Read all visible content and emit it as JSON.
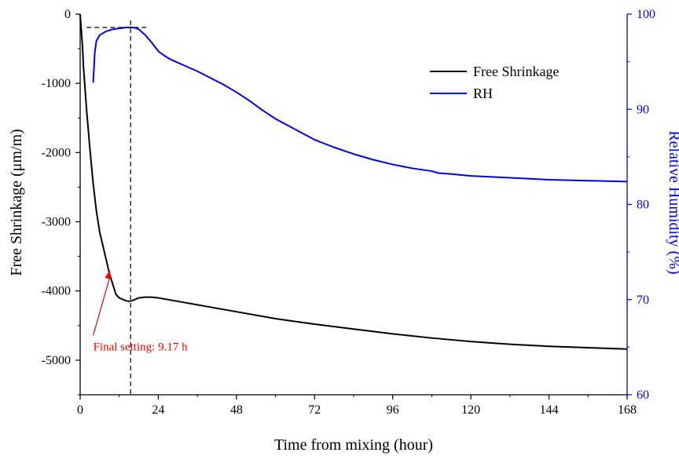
{
  "chart_data": {
    "type": "line",
    "xlabel": "Time from mixing (hour)",
    "ylabel_left": "Free Shrinkage (μm/m)",
    "ylabel_right": "Relative Humidity (%)",
    "xlim": [
      0,
      168
    ],
    "ylim_left": [
      -5500,
      0
    ],
    "ylim_right": [
      60,
      100
    ],
    "x_ticks": [
      0,
      24,
      48,
      72,
      96,
      120,
      144,
      168
    ],
    "y_left_ticks": [
      0,
      -1000,
      -2000,
      -3000,
      -4000,
      -5000
    ],
    "y_right_ticks": [
      100,
      90,
      80,
      70,
      60
    ],
    "legend_position": "top-right",
    "colors": {
      "shrinkage": "#000000",
      "rh": "#0000ee",
      "annotation": "#ee0000",
      "guide": "#000000"
    },
    "series": [
      {
        "name": "Free Shrinkage",
        "axis": "left",
        "x": [
          0,
          0.3,
          0.7,
          1,
          2,
          3,
          4,
          5,
          6,
          7,
          8,
          9,
          10,
          11,
          12,
          13,
          14,
          15,
          16,
          17,
          18,
          20,
          22,
          24,
          30,
          36,
          48,
          60,
          72,
          84,
          96,
          108,
          120,
          132,
          144,
          156,
          168
        ],
        "y": [
          0,
          -200,
          -450,
          -750,
          -1400,
          -1950,
          -2450,
          -2850,
          -3150,
          -3350,
          -3550,
          -3750,
          -3900,
          -4050,
          -4100,
          -4120,
          -4140,
          -4150,
          -4140,
          -4120,
          -4100,
          -4090,
          -4090,
          -4100,
          -4150,
          -4200,
          -4300,
          -4400,
          -4480,
          -4550,
          -4620,
          -4680,
          -4730,
          -4770,
          -4800,
          -4820,
          -4840
        ]
      },
      {
        "name": "RH",
        "axis": "right",
        "x": [
          4,
          4.5,
          5,
          6,
          7,
          8,
          9,
          10,
          11,
          12,
          13,
          14,
          15,
          16,
          17,
          18,
          20,
          22,
          24,
          26,
          28,
          30,
          32,
          36,
          40,
          44,
          48,
          52,
          56,
          60,
          66,
          72,
          78,
          84,
          90,
          96,
          102,
          108,
          110,
          114,
          120,
          132,
          144,
          156,
          168
        ],
        "y": [
          92.8,
          96.0,
          97.2,
          97.8,
          98.0,
          98.2,
          98.3,
          98.4,
          98.45,
          98.5,
          98.55,
          98.6,
          98.6,
          98.6,
          98.55,
          98.4,
          97.8,
          97.0,
          96.1,
          95.6,
          95.2,
          94.9,
          94.6,
          94.0,
          93.3,
          92.6,
          91.8,
          90.9,
          89.9,
          89.0,
          87.9,
          86.8,
          86.0,
          85.3,
          84.7,
          84.2,
          83.8,
          83.5,
          83.3,
          83.2,
          83.0,
          82.8,
          82.6,
          82.5,
          82.4
        ]
      }
    ],
    "annotation": {
      "label": "Final setting: 9.17 h",
      "arrow_target_x": 9.17,
      "arrow_target_y": -3700,
      "text_anchor_x": 4,
      "text_anchor_y": -4800
    },
    "guides": {
      "vertical_line_x": 15.5,
      "horizontal_line_y_rh": 98.6,
      "horizontal_line_x_range": [
        2,
        21
      ]
    }
  }
}
